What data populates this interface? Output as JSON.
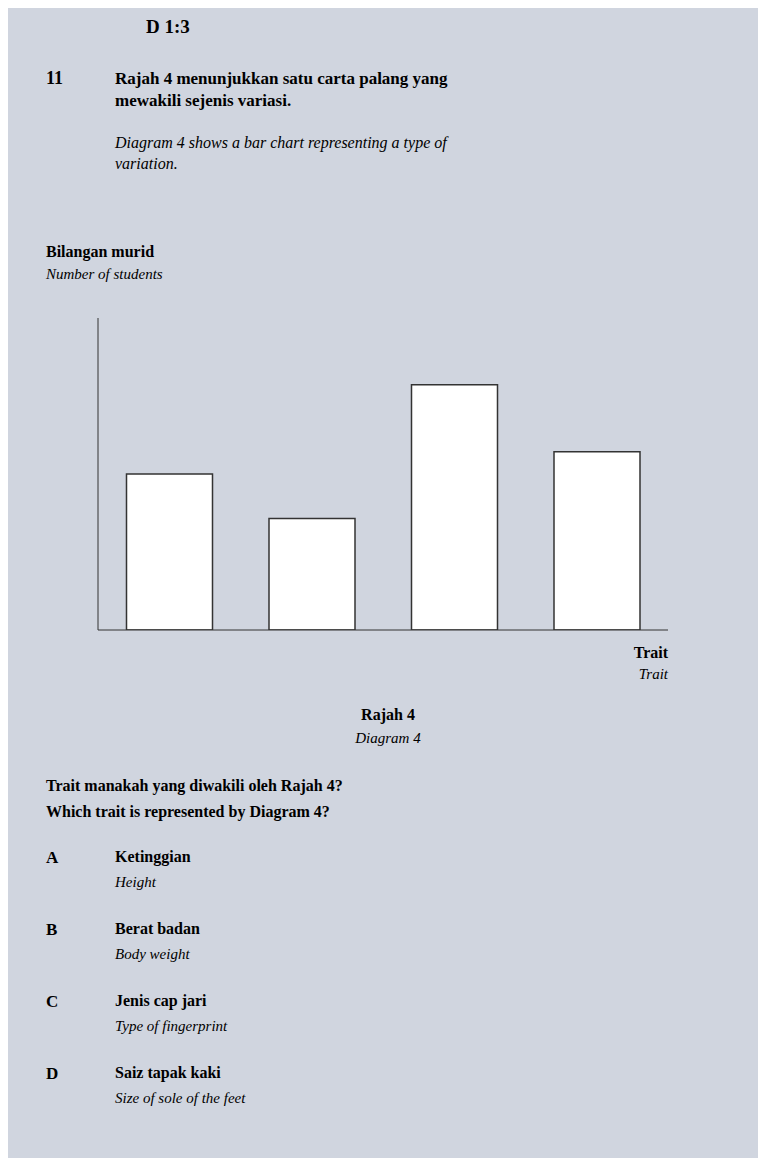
{
  "chart_data": {
    "type": "bar",
    "title": "Rajah 4 menunjukkan satu carta palang yang\nmewakili sejenis variasi.",
    "subtitle": "Diagram 4 shows a bar chart representing a type of\nvariation.",
    "ylabel": [
      "Bilangan murid",
      "Number of students"
    ],
    "xlabel": [
      "Trait",
      "Trait"
    ],
    "categories": [
      null,
      null,
      null,
      null
    ],
    "values": [
      3.5,
      2.5,
      5.5,
      4.0
    ],
    "color": "#ffffff",
    "ylim": [
      0,
      7
    ],
    "grid": false,
    "tick_labels": false,
    "annotations": [
      "D    1:3",
      "11",
      "Rajah 4",
      "Diagram 4",
      "Trait manakah yang diwakili oleh Rajah 4?\nWhich trait is represented by Diagram 4?",
      "A",
      "Ketinggian",
      "Height",
      "B",
      "Berat badan",
      "Body weight",
      "C",
      "Jenis cap jari",
      "Type of fingerprint",
      "D",
      "Saiz tapak kaki",
      "Size of sole of the feet"
    ]
  }
}
